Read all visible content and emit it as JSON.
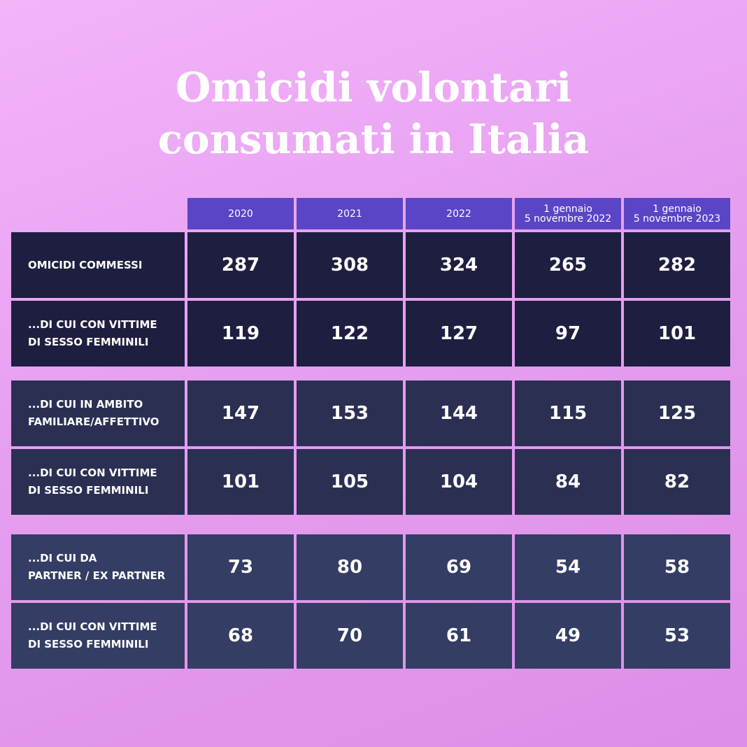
{
  "title": [
    "Omicidi volontari",
    "consumati in Italia"
  ],
  "table": {
    "columns": [
      [
        "2020"
      ],
      [
        "2021"
      ],
      [
        "2022"
      ],
      [
        "1 gennaio",
        "5 novembre 2022"
      ],
      [
        "1 gennaio",
        "5 novembre 2023"
      ]
    ],
    "groups": [
      {
        "rows": [
          {
            "label": [
              "OMICIDI COMMESSI"
            ],
            "values": [
              287,
              308,
              324,
              265,
              282
            ]
          },
          {
            "label": [
              "...DI CUI CON VITTIME",
              "DI SESSO FEMMINILI"
            ],
            "values": [
              119,
              122,
              127,
              97,
              101
            ]
          }
        ]
      },
      {
        "rows": [
          {
            "label": [
              "...DI CUI IN AMBITO",
              "FAMILIARE/AFFETTIVO"
            ],
            "values": [
              147,
              153,
              144,
              115,
              125
            ]
          },
          {
            "label": [
              "...DI CUI CON VITTIME",
              "DI SESSO FEMMINILI"
            ],
            "values": [
              101,
              105,
              104,
              84,
              82
            ]
          }
        ]
      },
      {
        "rows": [
          {
            "label": [
              "...DI CUI DA",
              "PARTNER / EX PARTNER"
            ],
            "values": [
              73,
              80,
              69,
              54,
              58
            ]
          },
          {
            "label": [
              "...DI CUI CON VITTIME",
              "DI SESSO FEMMINILI"
            ],
            "values": [
              68,
              70,
              61,
              49,
              53
            ]
          }
        ]
      }
    ]
  }
}
